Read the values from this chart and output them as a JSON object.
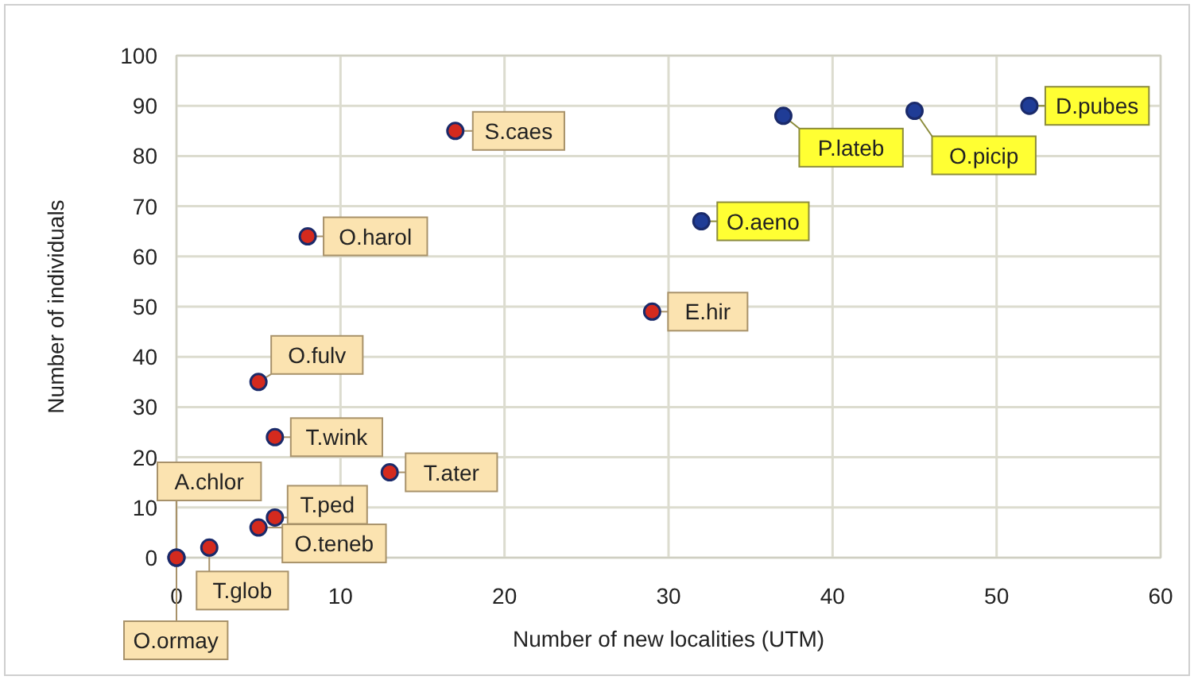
{
  "chart_data": {
    "type": "scatter",
    "xlabel": "Number of new localities (UTM)",
    "ylabel": "Number of individuals",
    "xlim": [
      0,
      60
    ],
    "ylim": [
      0,
      100
    ],
    "xticks": [
      0,
      10,
      20,
      30,
      40,
      50,
      60
    ],
    "yticks": [
      0,
      10,
      20,
      30,
      40,
      50,
      60,
      70,
      80,
      90,
      100
    ],
    "grid": true,
    "marker": "circle",
    "series": [
      {
        "color": "#d42a1e",
        "x": [
          0,
          0,
          2,
          5,
          6,
          6,
          5,
          13,
          8,
          17,
          29
        ],
        "values": [
          0,
          0,
          2,
          6,
          8,
          24,
          35,
          17,
          64,
          85,
          49
        ]
      },
      {
        "color": "#1f3c96",
        "x": [
          32,
          37,
          45,
          52
        ],
        "values": [
          67,
          88,
          89,
          90
        ]
      }
    ],
    "annotations": [
      {
        "text": "A.chlor",
        "x": 0,
        "y": 0
      },
      {
        "text": "O.ormay",
        "x": 0,
        "y": 0
      },
      {
        "text": "T.glob",
        "x": 2,
        "y": 2
      },
      {
        "text": "O.teneb",
        "x": 5,
        "y": 6
      },
      {
        "text": "T.ped",
        "x": 6,
        "y": 8
      },
      {
        "text": "T.wink",
        "x": 6,
        "y": 24
      },
      {
        "text": "O.fulv",
        "x": 5,
        "y": 35
      },
      {
        "text": "T.ater",
        "x": 13,
        "y": 17
      },
      {
        "text": "O.harol",
        "x": 8,
        "y": 64
      },
      {
        "text": "S.caes",
        "x": 17,
        "y": 85
      },
      {
        "text": "E.hir",
        "x": 29,
        "y": 49
      },
      {
        "text": "O.aeno",
        "x": 32,
        "y": 67
      },
      {
        "text": "P.lateb",
        "x": 37,
        "y": 88
      },
      {
        "text": "O.picip",
        "x": 45,
        "y": 89
      },
      {
        "text": "D.pubes",
        "x": 52,
        "y": 90
      }
    ]
  }
}
